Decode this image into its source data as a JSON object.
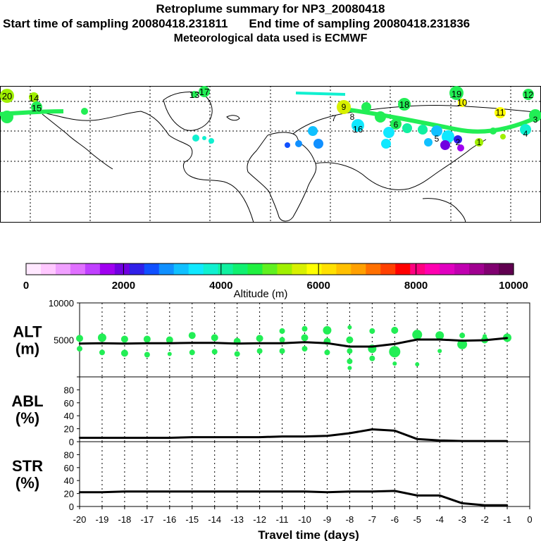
{
  "header": {
    "title": "Retroplume summary for NP3_20080418",
    "start_label": "Start time of sampling 20080418.231811",
    "end_label": "End time of sampling 20080418.231836",
    "met_label": "Meteorological data used is ECMWF"
  },
  "colors": {
    "plume_green": "#22ee55",
    "line": "#000000",
    "panel_border": "#000000"
  },
  "colorbar": {
    "label": "Altitude (m)",
    "tick_labels": [
      "0",
      "2000",
      "4000",
      "6000",
      "8000",
      "10000"
    ],
    "colors": [
      "#ffe8ff",
      "#ffc8ff",
      "#f0a0ff",
      "#e070ff",
      "#c040ff",
      "#a000f0",
      "#7000e0",
      "#3020e8",
      "#1050ff",
      "#1090ff",
      "#10c0ff",
      "#10e8ff",
      "#10f0d0",
      "#10f0a0",
      "#10f070",
      "#20f040",
      "#60f020",
      "#a0f000",
      "#d8f000",
      "#ffff00",
      "#ffe000",
      "#ffc000",
      "#ffa000",
      "#ff7000",
      "#ff4000",
      "#ff0000",
      "#ff0080",
      "#ff00b0",
      "#e000c0",
      "#c000b0",
      "#a00090",
      "#800070",
      "#600050"
    ]
  },
  "map": {
    "labels": [
      "20",
      "14",
      "15",
      "17",
      "13",
      "19",
      "12",
      "18",
      "16",
      "10",
      "11",
      "9",
      "7",
      "5",
      "3",
      "4",
      "6",
      "8",
      "2",
      "1"
    ]
  },
  "chart_data": [
    {
      "id": "alt",
      "type": "line",
      "ylabel": "ALT\n(m)",
      "ylabel_line1": "ALT",
      "ylabel_line2": "(m)",
      "xlim": [
        -20,
        0
      ],
      "ylim": [
        0,
        10000
      ],
      "yticks": [
        {
          "value": 0,
          "label": ""
        },
        {
          "value": 5000,
          "label": "5000"
        },
        {
          "value": 10000,
          "label": "10000"
        }
      ],
      "x": [
        -20,
        -19,
        -18,
        -17,
        -16,
        -15,
        -14,
        -13,
        -12,
        -11,
        -10,
        -9,
        -8,
        -7,
        -6,
        -5,
        -4,
        -3,
        -2,
        -1
      ],
      "values": [
        4500,
        4550,
        4500,
        4550,
        4550,
        4600,
        4600,
        4500,
        4550,
        4550,
        4700,
        4550,
        4100,
        4100,
        4450,
        5050,
        5050,
        4900,
        4950,
        5250
      ],
      "plume_points": [
        {
          "x": -20,
          "y": 5200,
          "r": 5
        },
        {
          "x": -20,
          "y": 3800,
          "r": 4
        },
        {
          "x": -19,
          "y": 5300,
          "r": 6
        },
        {
          "x": -19,
          "y": 3300,
          "r": 4
        },
        {
          "x": -18,
          "y": 5100,
          "r": 5
        },
        {
          "x": -18,
          "y": 3200,
          "r": 5
        },
        {
          "x": -17,
          "y": 5100,
          "r": 5
        },
        {
          "x": -17,
          "y": 3000,
          "r": 4
        },
        {
          "x": -16,
          "y": 5000,
          "r": 5
        },
        {
          "x": -16,
          "y": 3100,
          "r": 3
        },
        {
          "x": -15,
          "y": 5600,
          "r": 5
        },
        {
          "x": -15,
          "y": 3300,
          "r": 4
        },
        {
          "x": -14,
          "y": 5300,
          "r": 5
        },
        {
          "x": -14,
          "y": 3400,
          "r": 4
        },
        {
          "x": -13,
          "y": 4800,
          "r": 5
        },
        {
          "x": -13,
          "y": 3100,
          "r": 4
        },
        {
          "x": -12,
          "y": 5200,
          "r": 5
        },
        {
          "x": -12,
          "y": 3500,
          "r": 4
        },
        {
          "x": -11,
          "y": 6200,
          "r": 4
        },
        {
          "x": -11,
          "y": 5000,
          "r": 4
        },
        {
          "x": -11,
          "y": 3500,
          "r": 4
        },
        {
          "x": -10,
          "y": 6500,
          "r": 4
        },
        {
          "x": -10,
          "y": 5300,
          "r": 5
        },
        {
          "x": -10,
          "y": 3800,
          "r": 4
        },
        {
          "x": -9,
          "y": 6300,
          "r": 6
        },
        {
          "x": -9,
          "y": 4800,
          "r": 5
        },
        {
          "x": -9,
          "y": 3300,
          "r": 4
        },
        {
          "x": -8,
          "y": 6700,
          "r": 3
        },
        {
          "x": -8,
          "y": 5000,
          "r": 5
        },
        {
          "x": -8,
          "y": 3500,
          "r": 4
        },
        {
          "x": -8,
          "y": 2100,
          "r": 4
        },
        {
          "x": -8,
          "y": 1200,
          "r": 3
        },
        {
          "x": -7,
          "y": 6200,
          "r": 4
        },
        {
          "x": -7,
          "y": 3800,
          "r": 6
        },
        {
          "x": -7,
          "y": 2500,
          "r": 4
        },
        {
          "x": -6,
          "y": 6300,
          "r": 5
        },
        {
          "x": -6,
          "y": 3400,
          "r": 8
        },
        {
          "x": -6,
          "y": 1800,
          "r": 3
        },
        {
          "x": -5,
          "y": 5700,
          "r": 7
        },
        {
          "x": -5,
          "y": 1700,
          "r": 3
        },
        {
          "x": -4,
          "y": 5600,
          "r": 6
        },
        {
          "x": -4,
          "y": 3500,
          "r": 3
        },
        {
          "x": -3,
          "y": 5600,
          "r": 4
        },
        {
          "x": -3,
          "y": 4400,
          "r": 7
        },
        {
          "x": -2,
          "y": 5000,
          "r": 5
        },
        {
          "x": -2,
          "y": 5500,
          "r": 3
        },
        {
          "x": -1,
          "y": 5300,
          "r": 6
        }
      ]
    },
    {
      "id": "abl",
      "type": "line",
      "ylabel": "ABL\n(%)",
      "ylabel_line1": "ABL",
      "ylabel_line2": "(%)",
      "xlim": [
        -20,
        0
      ],
      "ylim": [
        0,
        100
      ],
      "yticks": [
        {
          "value": 0,
          "label": "0"
        },
        {
          "value": 20,
          "label": "20"
        },
        {
          "value": 40,
          "label": "40"
        },
        {
          "value": 60,
          "label": "60"
        },
        {
          "value": 80,
          "label": "80"
        }
      ],
      "x": [
        -20,
        -19,
        -18,
        -17,
        -16,
        -15,
        -14,
        -13,
        -12,
        -11,
        -10,
        -9,
        -8,
        -7,
        -6,
        -5,
        -4,
        -3,
        -2,
        -1
      ],
      "values": [
        6,
        6,
        6,
        6,
        6,
        7,
        7,
        7,
        7,
        8,
        8,
        9,
        13,
        19,
        17,
        4,
        2,
        1,
        1,
        1
      ]
    },
    {
      "id": "str",
      "type": "line",
      "ylabel": "STR\n(%)",
      "ylabel_line1": "STR",
      "ylabel_line2": "(%)",
      "xlim": [
        -20,
        0
      ],
      "ylim": [
        0,
        100
      ],
      "yticks": [
        {
          "value": 0,
          "label": "0"
        },
        {
          "value": 20,
          "label": "20"
        },
        {
          "value": 40,
          "label": "40"
        },
        {
          "value": 60,
          "label": "60"
        },
        {
          "value": 80,
          "label": "80"
        }
      ],
      "x": [
        -20,
        -19,
        -18,
        -17,
        -16,
        -15,
        -14,
        -13,
        -12,
        -11,
        -10,
        -9,
        -8,
        -7,
        -6,
        -5,
        -4,
        -3,
        -2,
        -1
      ],
      "values": [
        22,
        22,
        23,
        23,
        23,
        23,
        23,
        23,
        23,
        23,
        23,
        22,
        23,
        23,
        24,
        17,
        17,
        5,
        2,
        2
      ]
    }
  ],
  "x_axis": {
    "tick_labels": [
      "-20",
      "-19",
      "-18",
      "-17",
      "-16",
      "-15",
      "-14",
      "-13",
      "-12",
      "-11",
      "-10",
      "-9",
      "-8",
      "-7",
      "-6",
      "-5",
      "-4",
      "-3",
      "-2",
      "-1",
      "0"
    ],
    "xlabel": "Travel time (days)"
  }
}
